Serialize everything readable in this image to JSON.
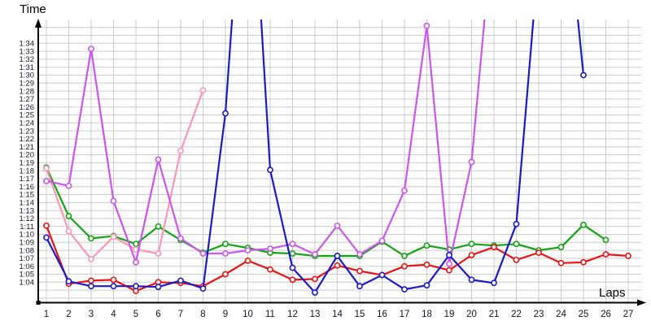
{
  "chart_data": {
    "type": "line",
    "title": "",
    "ylabel": "Time",
    "xlabel": "Laps",
    "grid": true,
    "legend": "none",
    "x_ticks": [
      1,
      2,
      3,
      4,
      5,
      6,
      7,
      8,
      9,
      10,
      11,
      12,
      13,
      14,
      15,
      16,
      17,
      18,
      19,
      20,
      21,
      22,
      23,
      24,
      25,
      26,
      27
    ],
    "y_tick_labels": [
      "1:04",
      "1:05",
      "1:06",
      "1:07",
      "1:08",
      "1:09",
      "1:10",
      "1:11",
      "1:12",
      "1:13",
      "1:14",
      "1:15",
      "1:16",
      "1:17",
      "1:18",
      "1:19",
      "1:20",
      "1:21",
      "1:22",
      "1:23",
      "1:24",
      "1:25",
      "1:26",
      "1:27",
      "1:28",
      "1:29",
      "1:30",
      "1:31",
      "1:32",
      "1:33",
      "1:34"
    ],
    "y_tick_values_s": [
      64,
      65,
      66,
      67,
      68,
      69,
      70,
      71,
      72,
      73,
      74,
      75,
      76,
      77,
      78,
      79,
      80,
      81,
      82,
      83,
      84,
      85,
      86,
      87,
      88,
      89,
      90,
      91,
      92,
      93,
      94
    ],
    "y_axis_note": "values are seconds past 1:00; visible plot range approx 1:01.5 to 1:36.6; gridlines every second from 1:02 to 1:36",
    "x_axis_range": [
      1,
      27
    ],
    "series": [
      {
        "name": "green",
        "color": "#11a511",
        "points": [
          [
            1,
            78.4
          ],
          [
            2,
            72.3
          ],
          [
            3,
            69.5
          ],
          [
            4,
            69.8
          ],
          [
            5,
            68.8
          ],
          [
            6,
            71.0
          ],
          [
            7,
            69.3
          ],
          [
            8,
            67.7
          ],
          [
            9,
            68.8
          ],
          [
            10,
            68.3
          ],
          [
            11,
            67.7
          ],
          [
            12,
            67.6
          ],
          [
            13,
            67.3
          ],
          [
            14,
            67.3
          ],
          [
            15,
            67.3
          ],
          [
            16,
            69.1
          ],
          [
            17,
            67.3
          ],
          [
            18,
            68.6
          ],
          [
            19,
            68.1
          ],
          [
            20,
            68.8
          ],
          [
            21,
            68.6
          ],
          [
            22,
            68.8
          ],
          [
            23,
            68.0
          ],
          [
            24,
            68.4
          ],
          [
            25,
            71.2
          ],
          [
            26,
            69.3
          ]
        ]
      },
      {
        "name": "pink",
        "color": "#ff94b8",
        "points": [
          [
            1,
            78.3
          ],
          [
            2,
            70.4
          ],
          [
            3,
            66.9
          ],
          [
            4,
            69.7
          ],
          [
            5,
            68.1
          ],
          [
            6,
            67.6
          ],
          [
            7,
            80.5
          ],
          [
            8,
            88.1
          ]
        ]
      },
      {
        "name": "magenta",
        "color": "#cc55ee",
        "points": [
          [
            1,
            76.7
          ],
          [
            2,
            76.1
          ],
          [
            3,
            93.3
          ],
          [
            4,
            74.2
          ],
          [
            5,
            66.5
          ],
          [
            6,
            79.4
          ],
          [
            7,
            69.5
          ],
          [
            8,
            67.6
          ],
          [
            9,
            67.6
          ],
          [
            10,
            68.0
          ],
          [
            11,
            68.2
          ],
          [
            12,
            68.8
          ],
          [
            13,
            67.5
          ],
          [
            14,
            71.1
          ],
          [
            15,
            67.5
          ],
          [
            16,
            69.2
          ],
          [
            17,
            75.5
          ],
          [
            18,
            96.2
          ],
          [
            19,
            66.3
          ],
          [
            20,
            79.1
          ],
          [
            21,
            110.0
          ]
        ]
      },
      {
        "name": "red",
        "color": "#ee1111",
        "points": [
          [
            1,
            71.1
          ],
          [
            2,
            63.8
          ],
          [
            3,
            64.2
          ],
          [
            4,
            64.3
          ],
          [
            5,
            62.9
          ],
          [
            6,
            64.0
          ],
          [
            7,
            63.9
          ],
          [
            8,
            63.5
          ],
          [
            9,
            65.0
          ],
          [
            10,
            66.7
          ],
          [
            11,
            65.6
          ],
          [
            12,
            64.3
          ],
          [
            13,
            64.4
          ],
          [
            14,
            66.1
          ],
          [
            15,
            65.4
          ],
          [
            16,
            64.9
          ],
          [
            17,
            66.0
          ],
          [
            18,
            66.2
          ],
          [
            19,
            65.5
          ],
          [
            20,
            67.4
          ],
          [
            21,
            68.4
          ],
          [
            22,
            66.8
          ],
          [
            23,
            67.7
          ],
          [
            24,
            66.4
          ],
          [
            25,
            66.5
          ],
          [
            26,
            67.5
          ],
          [
            27,
            67.3
          ]
        ]
      },
      {
        "name": "blue",
        "color": "#1a1acd",
        "points": [
          [
            1,
            69.6
          ],
          [
            2,
            64.1
          ],
          [
            3,
            63.5
          ],
          [
            4,
            63.5
          ],
          [
            5,
            63.5
          ],
          [
            6,
            63.4
          ],
          [
            7,
            64.2
          ],
          [
            8,
            63.2
          ],
          [
            9,
            85.2
          ],
          [
            10,
            125.0
          ],
          [
            11,
            78.1
          ],
          [
            12,
            65.8
          ],
          [
            13,
            62.7
          ],
          [
            14,
            67.3
          ],
          [
            15,
            63.5
          ],
          [
            16,
            64.9
          ],
          [
            17,
            63.1
          ],
          [
            18,
            63.6
          ],
          [
            19,
            67.4
          ],
          [
            20,
            64.3
          ],
          [
            21,
            63.9
          ],
          [
            22,
            71.3
          ],
          [
            23,
            105.0
          ],
          [
            24,
            118.0
          ],
          [
            25,
            90.0
          ]
        ]
      }
    ],
    "colors": {
      "gridline": "#cccccc",
      "axis": "#000000",
      "tick_label": "#14142a"
    }
  }
}
